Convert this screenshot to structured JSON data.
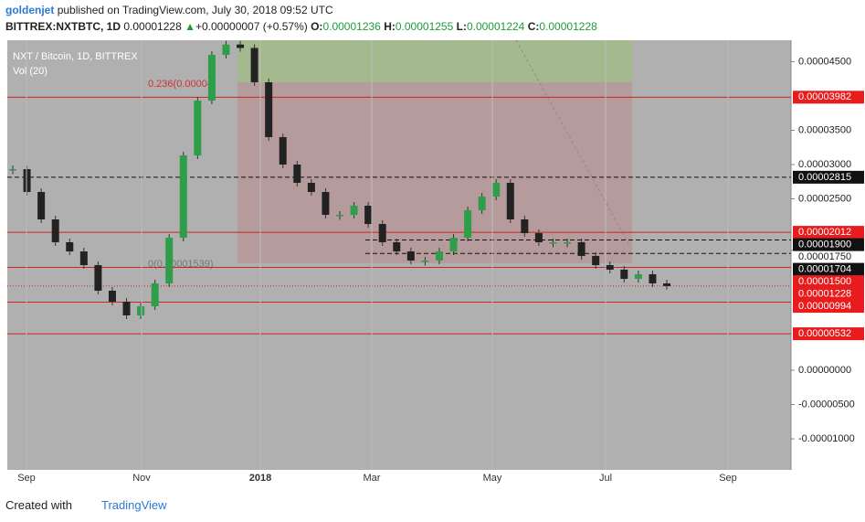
{
  "header": {
    "user": "goldenjet",
    "published": "published on TradingView.com, July 30, 2018 09:52 UTC"
  },
  "ticker": {
    "symbol": "BITTREX:NXTBTC, 1D",
    "last": "0.00001228",
    "arrow": "▲",
    "change": "+0.00000007 (+0.57%)",
    "o_label": "O:",
    "open": "0.00001236",
    "h_label": "H:",
    "high": "0.00001255",
    "l_label": "L:",
    "low": "0.00001224",
    "c_label": "C:",
    "close": "0.00001228"
  },
  "chart_data": {
    "type": "candlestick",
    "legend": "NXT / Bitcoin, 1D, BITTREX",
    "volume_legend": "Vol (20)",
    "ylim": [
      -1.453e-05,
      4.813e-05
    ],
    "yticks": [
      {
        "value": 4.5e-05,
        "label": "0.00004500"
      },
      {
        "value": 3.5e-05,
        "label": "0.00003500"
      },
      {
        "value": 3e-05,
        "label": "0.00003000"
      },
      {
        "value": 2.5e-05,
        "label": "0.00002500"
      },
      {
        "value": 1.75e-05,
        "label": "0.00001750"
      },
      {
        "value": 0,
        "label": "0.00000000"
      },
      {
        "value": -5e-06,
        "label": "-0.00000500"
      },
      {
        "value": -1e-05,
        "label": "-0.00001000"
      }
    ],
    "levels": [
      {
        "value": 3.982e-05,
        "label": "0.00003982",
        "style": "red"
      },
      {
        "value": 2.815e-05,
        "label": "0.00002815",
        "style": "dashed"
      },
      {
        "value": 2.012e-05,
        "label": "0.00002012",
        "style": "red"
      },
      {
        "value": 1.9e-05,
        "label": "0.00001900",
        "style": "dashed"
      },
      {
        "value": 1.704e-05,
        "label": "0.00001704",
        "style": "dashed"
      },
      {
        "value": 1.5e-05,
        "label": "0.00001500",
        "style": "red"
      },
      {
        "value": 1.228e-05,
        "label": "0.00001228",
        "style": "dotted"
      },
      {
        "value": 9.94e-06,
        "label": "0.00000994",
        "style": "red"
      },
      {
        "value": 5.32e-06,
        "label": "0.00000532",
        "style": "red"
      }
    ],
    "annotations": [
      "0.236(0.00004",
      "0(0.00001539)"
    ],
    "time_labels": [
      "Sep",
      "Nov",
      "2018",
      "Mar",
      "May",
      "Jul",
      "Sep"
    ],
    "up_color": "#2e9e4a",
    "down_color": "#222222",
    "closes": [
      2.933e-05,
      2.6e-05,
      2.2e-05,
      1.867e-05,
      1.733e-05,
      1.533e-05,
      1.16e-05,
      1e-05,
      8e-06,
      9.33e-06,
      1.267e-05,
      1.933e-05,
      3.133e-05,
      3.933e-05,
      4.6e-05,
      4.75e-05,
      4.7e-05,
      4.2e-05,
      3.4e-05,
      3e-05,
      2.733e-05,
      2.6e-05,
      2.267e-05,
      2.267e-05,
      2.4e-05,
      2.133e-05,
      1.867e-05,
      1.733e-05,
      1.6e-05,
      1.6e-05,
      1.733e-05,
      1.933e-05,
      2.333e-05,
      2.533e-05,
      2.733e-05,
      2.2e-05,
      2e-05,
      1.867e-05,
      1.867e-05,
      1.867e-05,
      1.667e-05,
      1.533e-05,
      1.467e-05,
      1.333e-05,
      1.4e-05,
      1.267e-05,
      1.228e-05
    ]
  },
  "footer": {
    "created": "Created with",
    "brand": "TradingView"
  }
}
